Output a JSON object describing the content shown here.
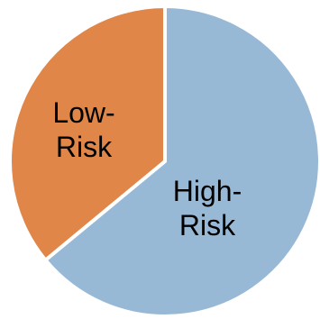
{
  "chart_data": {
    "type": "pie",
    "title": "",
    "slices": [
      {
        "label_lines": [
          "High-",
          "Risk"
        ],
        "value": 64,
        "color": "#98b9d6"
      },
      {
        "label_lines": [
          "Low-",
          "Risk"
        ],
        "value": 36,
        "color": "#df8648"
      }
    ],
    "start_angle_deg": 0,
    "direction": "clockwise",
    "legend": "none",
    "slice_border_color": "#ffffff"
  }
}
